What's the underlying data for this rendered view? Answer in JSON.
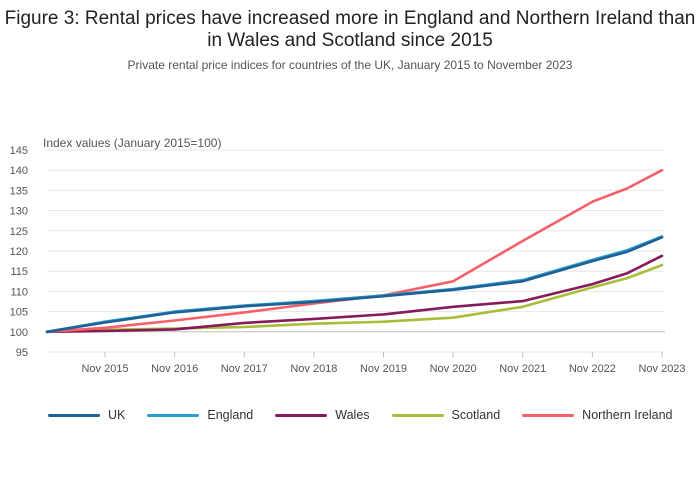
{
  "title": "Figure 3: Rental prices have increased more in England and Northern Ireland than in Wales and Scotland since 2015",
  "subtitle": "Private rental price indices for countries of the UK, January 2015 to November 2023",
  "chart_data": {
    "type": "line",
    "title": "Figure 3: Rental prices have increased more in England and Northern Ireland than in Wales and Scotland since 2015",
    "subtitle": "Private rental price indices for countries of the UK, January 2015 to November 2023",
    "ylabel": "Index values (January 2015=100)",
    "xlabel": "",
    "ylim": [
      95,
      145
    ],
    "yticks": [
      95,
      100,
      105,
      110,
      115,
      120,
      125,
      130,
      135,
      140,
      145
    ],
    "xlim": [
      "2015-01",
      "2023-11"
    ],
    "xticks": [
      "Nov 2015",
      "Nov 2016",
      "Nov 2017",
      "Nov 2018",
      "Nov 2019",
      "Nov 2020",
      "Nov 2021",
      "Nov 2022",
      "Nov 2023"
    ],
    "x": [
      "2015-01",
      "2015-11",
      "2016-11",
      "2017-11",
      "2018-11",
      "2019-11",
      "2020-11",
      "2021-11",
      "2022-11",
      "2023-05",
      "2023-11"
    ],
    "grid": true,
    "legend_position": "bottom",
    "series": [
      {
        "name": "UK",
        "color": "#206095",
        "values": [
          100,
          102.3,
          104.8,
          106.3,
          107.4,
          108.8,
          110.4,
          112.5,
          117.5,
          119.8,
          123.4
        ]
      },
      {
        "name": "England",
        "color": "#27a0cc",
        "values": [
          100,
          102.5,
          105.0,
          106.5,
          107.6,
          109.0,
          110.6,
          112.8,
          117.8,
          120.2,
          123.6
        ]
      },
      {
        "name": "Wales",
        "color": "#871a5b",
        "values": [
          100,
          100.2,
          100.6,
          102.2,
          103.2,
          104.3,
          106.2,
          107.6,
          111.8,
          114.5,
          118.8
        ]
      },
      {
        "name": "Scotland",
        "color": "#a8bd3a",
        "values": [
          100,
          100.5,
          100.8,
          101.2,
          102.0,
          102.5,
          103.5,
          106.2,
          111.0,
          113.3,
          116.5
        ]
      },
      {
        "name": "Northern Ireland",
        "color": "#f66068",
        "values": [
          100,
          101.0,
          102.8,
          104.8,
          107.0,
          109.0,
          112.5,
          122.5,
          132.2,
          135.5,
          140.0
        ]
      }
    ]
  }
}
